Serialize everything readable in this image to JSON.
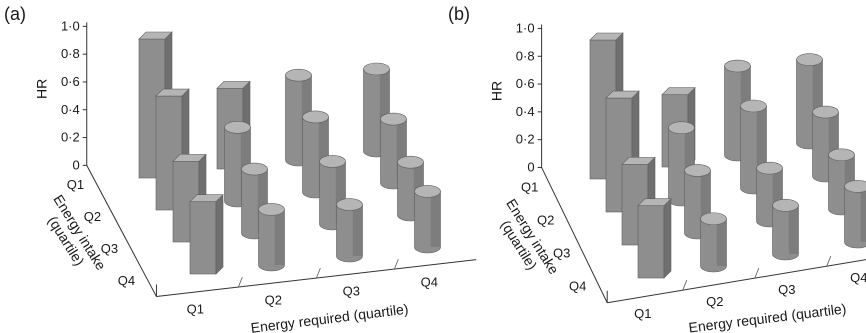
{
  "chart_data": [
    {
      "panel_label": "(a)",
      "type": "bar",
      "subtype": "3d-bar",
      "ylabel": "HR",
      "xlabel": "Energy required (quartile)",
      "zlabel": "Energy intake (quartile)",
      "x_categories": [
        "Q1",
        "Q2",
        "Q3",
        "Q4"
      ],
      "z_categories": [
        "Q1",
        "Q2",
        "Q3",
        "Q4"
      ],
      "y_ticks": [
        "0",
        "0·2",
        "0·4",
        "0·6",
        "0·8",
        "1·0"
      ],
      "ylim": [
        0,
        1
      ],
      "series": [
        {
          "values": [
            1.0,
            0.58,
            0.61,
            0.59
          ]
        },
        {
          "values": [
            0.82,
            0.53,
            0.54,
            0.46
          ]
        },
        {
          "values": [
            0.58,
            0.46,
            0.45,
            0.38
          ]
        },
        {
          "values": [
            0.52,
            0.4,
            0.37,
            0.4
          ]
        }
      ]
    },
    {
      "panel_label": "(b)",
      "type": "bar",
      "subtype": "3d-bar",
      "ylabel": "HR",
      "xlabel": "Energy required (quartile)",
      "zlabel": "Energy intake (quartile)",
      "x_categories": [
        "Q1",
        "Q2",
        "Q3",
        "Q4"
      ],
      "z_categories": [
        "Q1",
        "Q2",
        "Q3",
        "Q4"
      ],
      "y_ticks": [
        "0",
        "0·2",
        "0·4",
        "0·6",
        "0·8",
        "1·0"
      ],
      "ylim": [
        0,
        1
      ],
      "series": [
        {
          "values": [
            1.0,
            0.52,
            0.64,
            0.6
          ]
        },
        {
          "values": [
            0.82,
            0.52,
            0.59,
            0.46
          ]
        },
        {
          "values": [
            0.58,
            0.45,
            0.38,
            0.39
          ]
        },
        {
          "values": [
            0.52,
            0.34,
            0.35,
            0.4
          ]
        }
      ]
    }
  ]
}
